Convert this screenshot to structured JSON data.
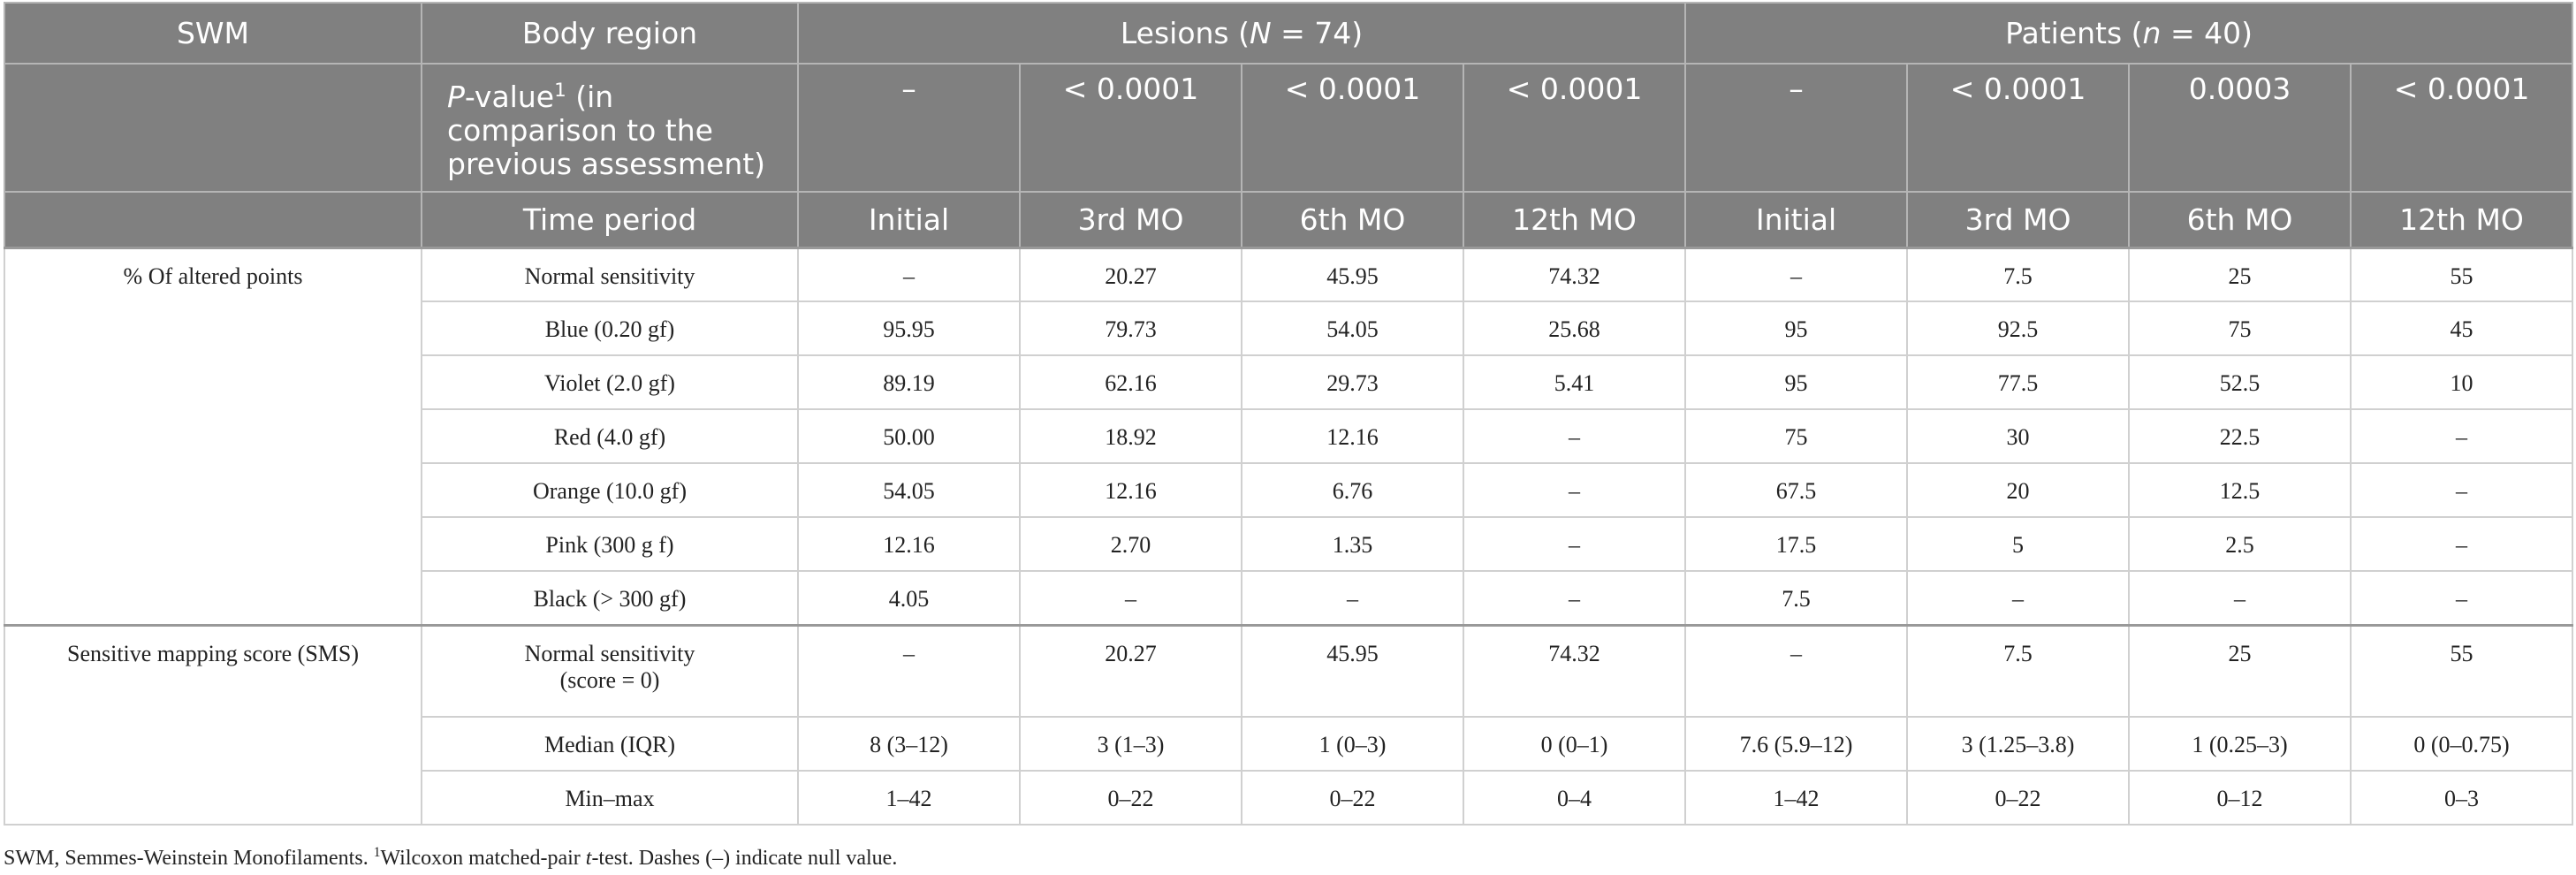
{
  "header": {
    "swm": "SWM",
    "body_region": "Body region",
    "lesions": [
      "Lesions (",
      "N",
      " = 74)"
    ],
    "patients": [
      "Patients (",
      "n",
      " = 40)"
    ],
    "pvalue_label": [
      "P",
      "-value",
      "1",
      " (in comparison to the previous assessment)"
    ],
    "pvalues": [
      "–",
      "< 0.0001",
      "< 0.0001",
      "< 0.0001",
      "–",
      "< 0.0001",
      "0.0003",
      "< 0.0001"
    ],
    "time_label": "Time period",
    "periods": [
      "Initial",
      "3rd MO",
      "6th MO",
      "12th MO",
      "Initial",
      "3rd MO",
      "6th MO",
      "12th MO"
    ]
  },
  "groups": [
    {
      "label": "% Of altered points",
      "rows": [
        {
          "region": "Normal sensitivity",
          "values": [
            "–",
            "20.27",
            "45.95",
            "74.32",
            "–",
            "7.5",
            "25",
            "55"
          ]
        },
        {
          "region": "Blue (0.20 gf)",
          "values": [
            "95.95",
            "79.73",
            "54.05",
            "25.68",
            "95",
            "92.5",
            "75",
            "45"
          ]
        },
        {
          "region": "Violet (2.0 gf)",
          "values": [
            "89.19",
            "62.16",
            "29.73",
            "5.41",
            "95",
            "77.5",
            "52.5",
            "10"
          ]
        },
        {
          "region": "Red (4.0 gf)",
          "values": [
            "50.00",
            "18.92",
            "12.16",
            "–",
            "75",
            "30",
            "22.5",
            "–"
          ]
        },
        {
          "region": "Orange (10.0 gf)",
          "values": [
            "54.05",
            "12.16",
            "6.76",
            "–",
            "67.5",
            "20",
            "12.5",
            "–"
          ]
        },
        {
          "region": "Pink (300 g f)",
          "values": [
            "12.16",
            "2.70",
            "1.35",
            "–",
            "17.5",
            "5",
            "2.5",
            "–"
          ]
        },
        {
          "region": "Black (> 300 gf)",
          "values": [
            "4.05",
            "–",
            "–",
            "–",
            "7.5",
            "–",
            "–",
            "–"
          ]
        }
      ]
    },
    {
      "label": "Sensitive mapping score (SMS)",
      "rows": [
        {
          "region": "Normal sensitivity (score = 0)",
          "values": [
            "–",
            "20.27",
            "45.95",
            "74.32",
            "–",
            "7.5",
            "25",
            "55"
          ]
        },
        {
          "region": "Median (IQR)",
          "values": [
            "8 (3–12)",
            "3 (1–3)",
            "1 (0–3)",
            "0 (0–1)",
            "7.6 (5.9–12)",
            "3 (1.25–3.8)",
            "1 (0.25–3)",
            "0 (0–0.75)"
          ]
        },
        {
          "region": "Min–max",
          "values": [
            "1–42",
            "0–22",
            "0–22",
            "0–4",
            "1–42",
            "0–22",
            "0–12",
            "0–3"
          ]
        }
      ]
    }
  ],
  "footnote": [
    "SWM, Semmes-Weinstein Monofilaments. ",
    "1",
    "Wilcoxon matched-pair ",
    "t",
    "-test. Dashes (–) indicate null value."
  ]
}
